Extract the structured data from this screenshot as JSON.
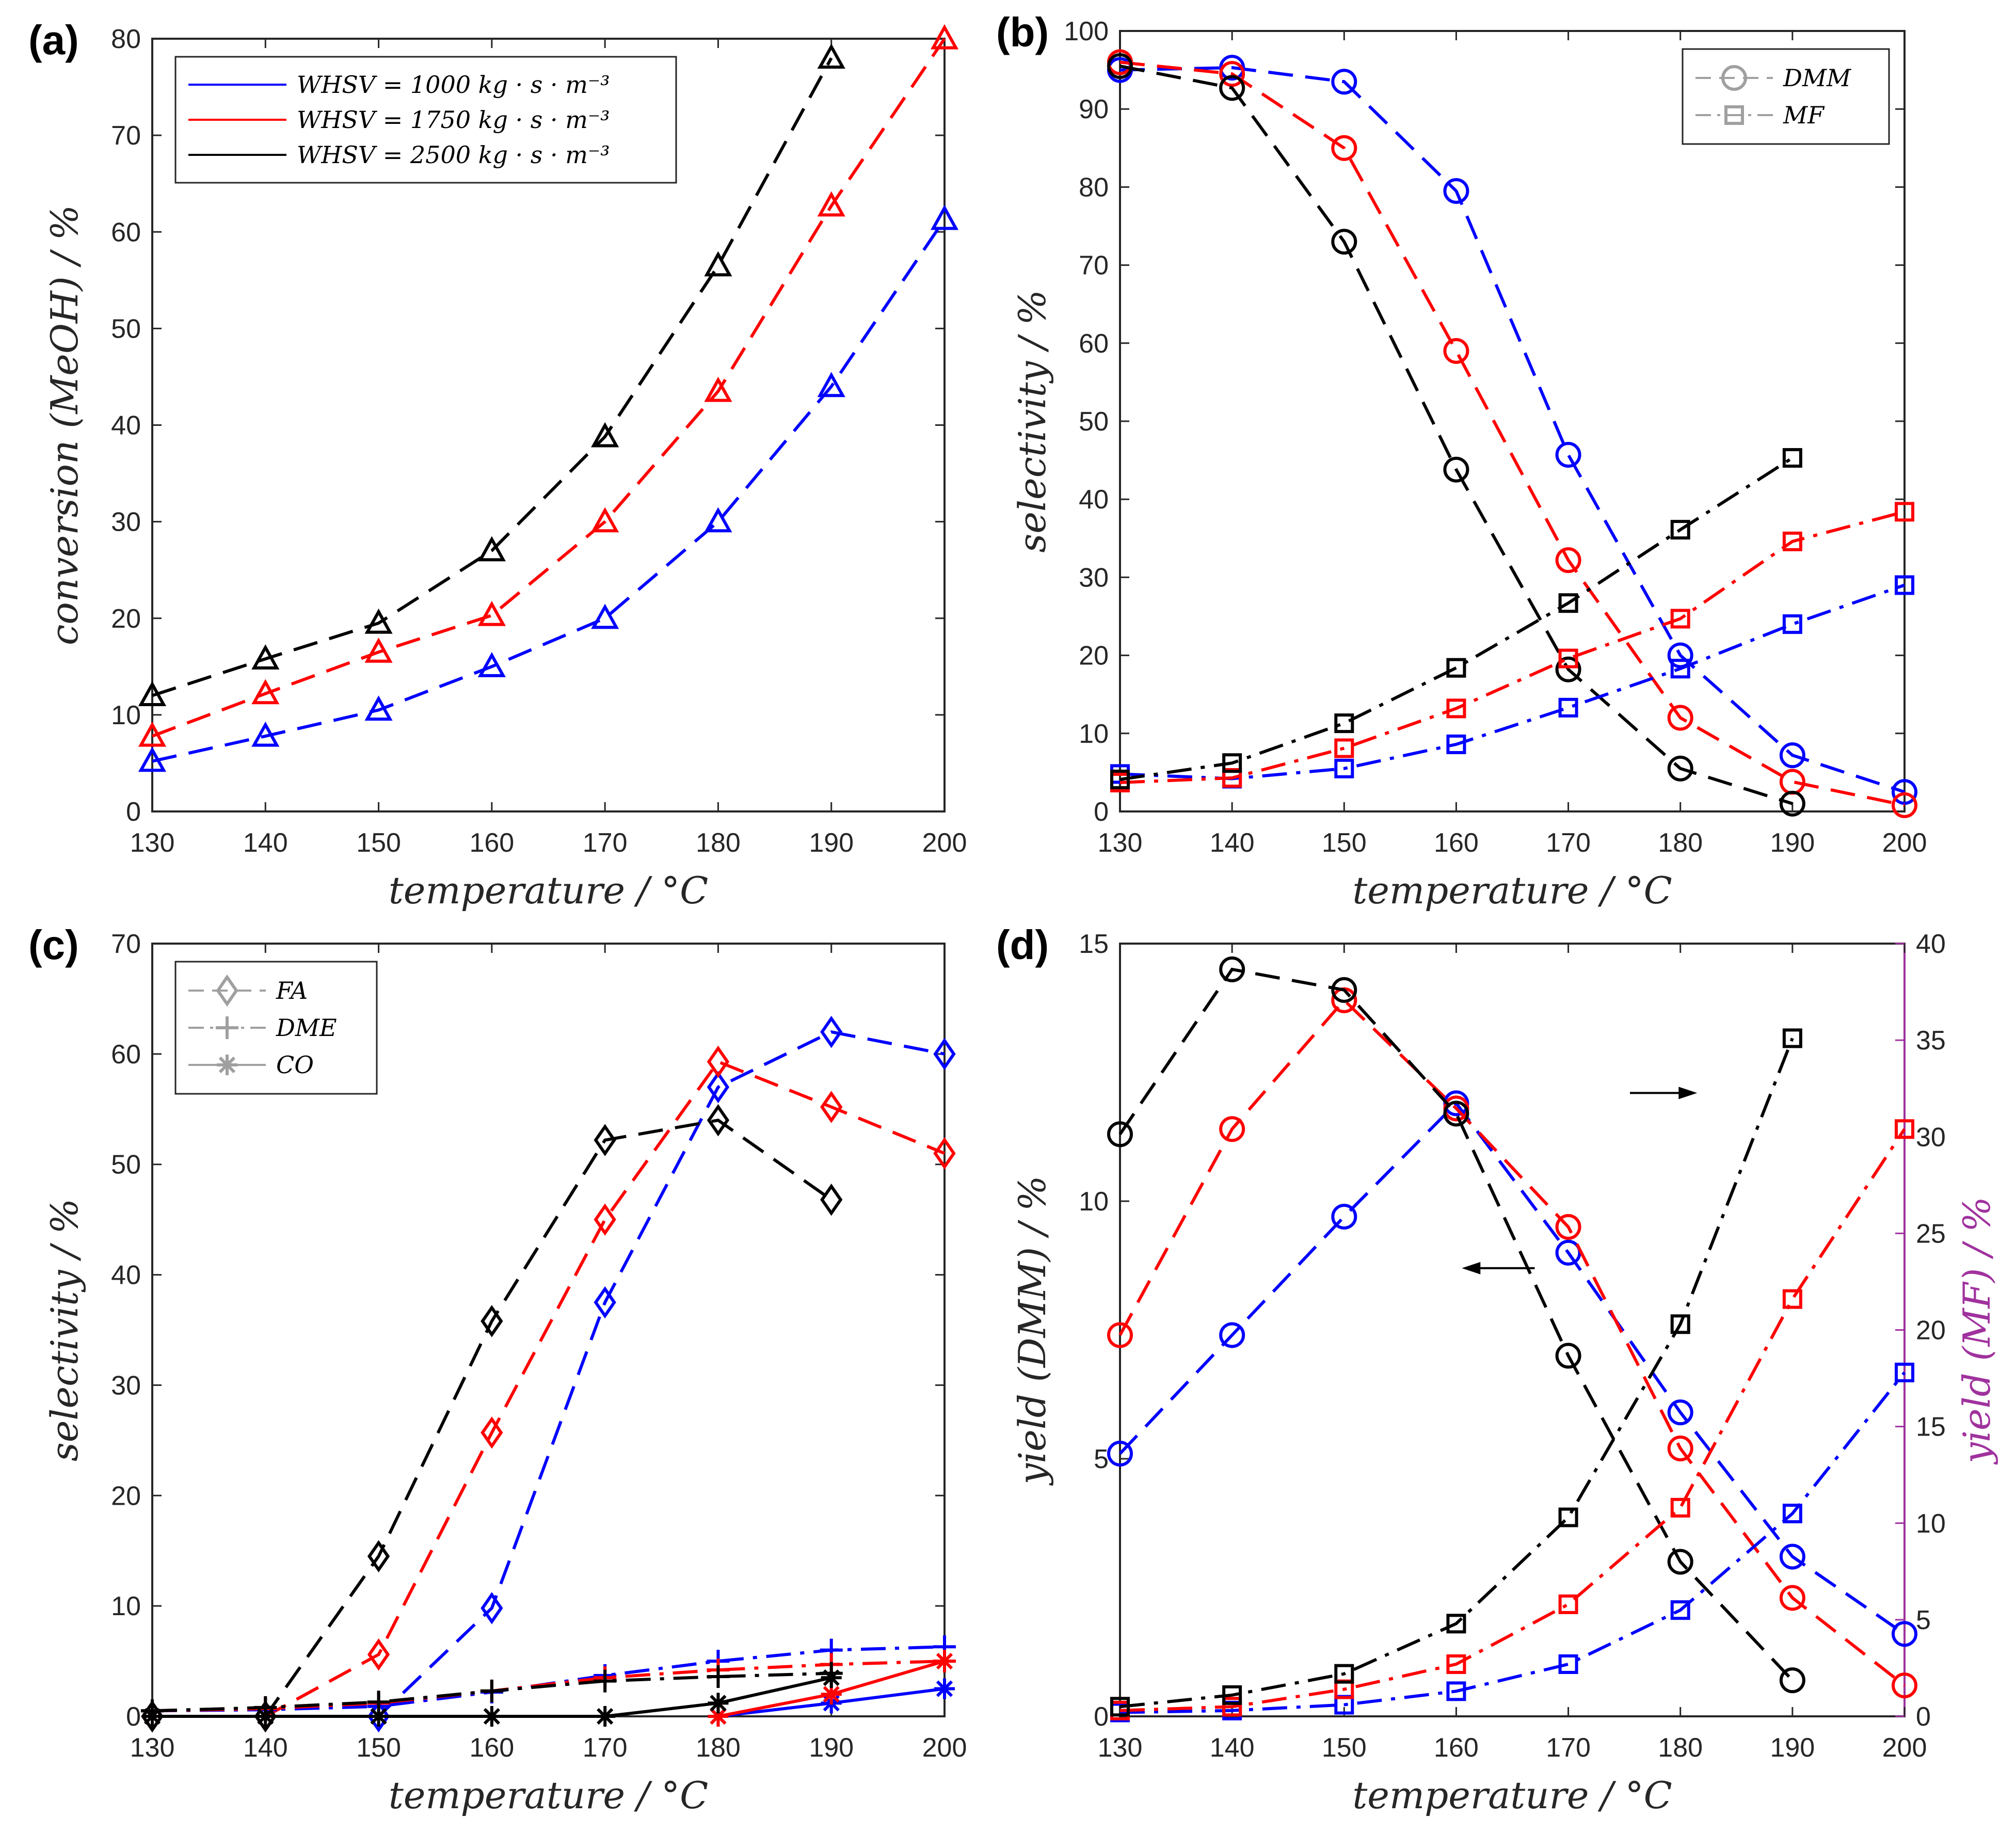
{
  "colors": {
    "blue": "#0000ff",
    "red": "#ff0000",
    "black": "#000000",
    "purple": "#a0329e",
    "gray": "#a0a0a0",
    "axis": "#262626"
  },
  "chart_data": [
    {
      "id": "a",
      "type": "line",
      "panel_label": "(a)",
      "xlabel": "temperature   /   °C",
      "ylabel": "conversion   (MeOH)   /   %",
      "xlim": [
        130,
        200
      ],
      "ylim": [
        0,
        80
      ],
      "xticks": [
        130,
        140,
        150,
        160,
        170,
        180,
        190,
        200
      ],
      "yticks": [
        0,
        10,
        20,
        30,
        40,
        50,
        60,
        70,
        80
      ],
      "legend": {
        "position": "top-left",
        "entries": [
          {
            "label": "WHSV = 1000   kg · s · m⁻³",
            "color": "blue",
            "dash": "solid",
            "marker": "none"
          },
          {
            "label": "WHSV = 1750   kg · s · m⁻³",
            "color": "red",
            "dash": "solid",
            "marker": "none"
          },
          {
            "label": "WHSV = 2500   kg · s · m⁻³",
            "color": "black",
            "dash": "solid",
            "marker": "none"
          }
        ]
      },
      "series": [
        {
          "name": "WHSV 1000",
          "color": "blue",
          "dash": "dashed",
          "marker": "triangle",
          "x": [
            130,
            140,
            150,
            160,
            170,
            180,
            190,
            200
          ],
          "values": [
            5.2,
            7.8,
            10.5,
            15.0,
            20.0,
            30.0,
            44.0,
            61.3
          ]
        },
        {
          "name": "WHSV 1750",
          "color": "red",
          "dash": "dashed",
          "marker": "triangle",
          "x": [
            130,
            140,
            150,
            160,
            170,
            180,
            190,
            200
          ],
          "values": [
            7.8,
            12.2,
            16.5,
            20.3,
            30.0,
            43.5,
            62.7,
            80.0
          ]
        },
        {
          "name": "WHSV 2500",
          "color": "black",
          "dash": "dashed",
          "marker": "triangle",
          "x": [
            130,
            140,
            150,
            160,
            170,
            180,
            190
          ],
          "values": [
            12.0,
            15.8,
            19.5,
            27.0,
            38.8,
            56.5,
            78.0
          ]
        }
      ]
    },
    {
      "id": "b",
      "type": "line",
      "panel_label": "(b)",
      "xlabel": "temperature   /   °C",
      "ylabel": "selectivity   /   %",
      "xlim": [
        130,
        200
      ],
      "ylim": [
        0,
        100
      ],
      "xticks": [
        130,
        140,
        150,
        160,
        170,
        180,
        190,
        200
      ],
      "yticks": [
        0,
        10,
        20,
        30,
        40,
        50,
        60,
        70,
        80,
        90,
        100
      ],
      "legend": {
        "position": "top-right",
        "entries": [
          {
            "label": "DMM",
            "color": "gray",
            "dash": "dashed",
            "marker": "circle"
          },
          {
            "label": "MF",
            "color": "gray",
            "dash": "dashdot",
            "marker": "square"
          }
        ]
      },
      "series": [
        {
          "name": "DMM 1000",
          "color": "blue",
          "dash": "dashed",
          "marker": "circle",
          "x": [
            130,
            140,
            150,
            160,
            170,
            180,
            190,
            200
          ],
          "values": [
            95.0,
            95.3,
            93.5,
            79.5,
            45.7,
            20.0,
            7.2,
            2.5
          ]
        },
        {
          "name": "DMM 1750",
          "color": "red",
          "dash": "dashed",
          "marker": "circle",
          "x": [
            130,
            140,
            150,
            160,
            170,
            180,
            190,
            200
          ],
          "values": [
            96.0,
            94.5,
            85.0,
            59.0,
            32.2,
            12.0,
            3.8,
            0.8
          ]
        },
        {
          "name": "DMM 2500",
          "color": "black",
          "dash": "dashed",
          "marker": "circle",
          "x": [
            130,
            140,
            150,
            160,
            170,
            180,
            190
          ],
          "values": [
            95.5,
            92.7,
            73.0,
            43.8,
            18.2,
            5.5,
            1.0
          ]
        },
        {
          "name": "MF 1000",
          "color": "blue",
          "dash": "dashdot",
          "marker": "square",
          "x": [
            130,
            140,
            150,
            160,
            170,
            180,
            190,
            200
          ],
          "values": [
            4.8,
            4.2,
            5.5,
            8.6,
            13.3,
            18.3,
            24.0,
            29.0
          ]
        },
        {
          "name": "MF 1750",
          "color": "red",
          "dash": "dashdot",
          "marker": "square",
          "x": [
            130,
            140,
            150,
            160,
            170,
            180,
            190,
            200
          ],
          "values": [
            3.7,
            4.3,
            8.1,
            13.2,
            19.6,
            24.7,
            34.6,
            38.4
          ]
        },
        {
          "name": "MF 2500",
          "color": "black",
          "dash": "dashdot",
          "marker": "square",
          "x": [
            130,
            140,
            150,
            160,
            170,
            180,
            190
          ],
          "values": [
            4.1,
            6.2,
            11.3,
            18.4,
            26.7,
            36.1,
            45.3
          ]
        }
      ]
    },
    {
      "id": "c",
      "type": "line",
      "panel_label": "(c)",
      "xlabel": "temperature   /   °C",
      "ylabel": "selectivity   /   %",
      "xlim": [
        130,
        200
      ],
      "ylim": [
        0,
        70
      ],
      "xticks": [
        130,
        140,
        150,
        160,
        170,
        180,
        190,
        200
      ],
      "yticks": [
        0,
        10,
        20,
        30,
        40,
        50,
        60,
        70
      ],
      "legend": {
        "position": "top-left",
        "entries": [
          {
            "label": "FA",
            "color": "gray",
            "dash": "dashed",
            "marker": "diamond"
          },
          {
            "label": "DME",
            "color": "gray",
            "dash": "dashdot",
            "marker": "plus"
          },
          {
            "label": "CO",
            "color": "gray",
            "dash": "solid",
            "marker": "asterisk"
          }
        ]
      },
      "series": [
        {
          "name": "FA 1000",
          "color": "blue",
          "dash": "dashed",
          "marker": "diamond",
          "x": [
            130,
            140,
            150,
            160,
            170,
            180,
            190,
            200
          ],
          "values": [
            0,
            0,
            0,
            9.8,
            37.5,
            57.0,
            62.0,
            60.0
          ]
        },
        {
          "name": "FA 1750",
          "color": "red",
          "dash": "dashed",
          "marker": "diamond",
          "x": [
            130,
            140,
            150,
            160,
            170,
            180,
            190,
            200
          ],
          "values": [
            0,
            0,
            5.6,
            25.7,
            45.0,
            59.3,
            55.2,
            51.0
          ]
        },
        {
          "name": "FA 2500",
          "color": "black",
          "dash": "dashed",
          "marker": "diamond",
          "x": [
            130,
            140,
            150,
            160,
            170,
            180,
            190
          ],
          "values": [
            0,
            0,
            14.5,
            35.8,
            52.2,
            54.0,
            46.8
          ]
        },
        {
          "name": "DME 1000",
          "color": "blue",
          "dash": "dashdot",
          "marker": "plus",
          "x": [
            130,
            140,
            150,
            160,
            170,
            180,
            190,
            200
          ],
          "values": [
            0.5,
            0.6,
            0.9,
            2.2,
            3.7,
            5.0,
            6.0,
            6.3
          ]
        },
        {
          "name": "DME 1750",
          "color": "red",
          "dash": "dashdot",
          "marker": "plus",
          "x": [
            130,
            140,
            150,
            160,
            170,
            180,
            190,
            200
          ],
          "values": [
            0.5,
            0.7,
            1.2,
            2.3,
            3.5,
            4.2,
            4.7,
            5.0
          ]
        },
        {
          "name": "DME 2500",
          "color": "black",
          "dash": "dashdot",
          "marker": "plus",
          "x": [
            130,
            140,
            150,
            160,
            170,
            180,
            190
          ],
          "values": [
            0.5,
            0.8,
            1.3,
            2.3,
            3.2,
            3.6,
            3.9
          ]
        },
        {
          "name": "CO 1000",
          "color": "blue",
          "dash": "solid",
          "marker": "asterisk",
          "x": [
            180,
            190,
            200
          ],
          "values": [
            0,
            1.2,
            2.5
          ]
        },
        {
          "name": "CO 1750",
          "color": "red",
          "dash": "solid",
          "marker": "asterisk",
          "x": [
            180,
            190,
            200
          ],
          "values": [
            0,
            2.0,
            5.0
          ]
        },
        {
          "name": "CO 2500",
          "color": "black",
          "dash": "solid",
          "marker": "asterisk",
          "x": [
            130,
            140,
            150,
            160,
            170,
            180,
            190
          ],
          "values": [
            0,
            0,
            0,
            0,
            0,
            1.2,
            3.5
          ]
        }
      ]
    },
    {
      "id": "d",
      "type": "line",
      "panel_label": "(d)",
      "xlabel": "temperature   /   °C",
      "ylabel": "yield   (DMM)   /   %",
      "ylabel_right": "yield   (MF)   /   %",
      "xlim": [
        130,
        200
      ],
      "ylim": [
        0,
        15
      ],
      "ylim_right": [
        0,
        40
      ],
      "xticks": [
        130,
        140,
        150,
        160,
        170,
        180,
        190,
        200
      ],
      "yticks": [
        0,
        5,
        10,
        15
      ],
      "yticks_right": [
        0,
        5,
        10,
        15,
        20,
        25,
        30,
        35,
        40
      ],
      "annotations": [
        "arrow-left near (165, 8.7) pointing to DMM axis",
        "arrow-right near (177, 12.1) pointing to MF axis"
      ],
      "series": [
        {
          "name": "DMM yield 1000",
          "color": "blue",
          "dash": "dashed",
          "marker": "circle",
          "axis": "left",
          "x": [
            130,
            140,
            150,
            160,
            170,
            180,
            190,
            200
          ],
          "values": [
            5.1,
            7.4,
            9.7,
            11.9,
            9.0,
            5.9,
            3.1,
            1.6
          ]
        },
        {
          "name": "DMM yield 1750",
          "color": "red",
          "dash": "dashed",
          "marker": "circle",
          "axis": "left",
          "x": [
            130,
            140,
            150,
            160,
            170,
            180,
            190,
            200
          ],
          "values": [
            7.4,
            11.4,
            13.9,
            11.8,
            9.5,
            5.2,
            2.3,
            0.6
          ]
        },
        {
          "name": "DMM yield 2500",
          "color": "black",
          "dash": "dashed",
          "marker": "circle",
          "axis": "left",
          "x": [
            130,
            140,
            150,
            160,
            170,
            180,
            190
          ],
          "values": [
            11.3,
            14.5,
            14.1,
            11.7,
            7.0,
            3.0,
            0.7
          ]
        },
        {
          "name": "MF yield 1000",
          "color": "blue",
          "dash": "dashdot",
          "marker": "square",
          "axis": "right",
          "x": [
            130,
            140,
            150,
            160,
            170,
            180,
            190,
            200
          ],
          "values": [
            0.2,
            0.3,
            0.6,
            1.3,
            2.7,
            5.5,
            10.5,
            17.8
          ]
        },
        {
          "name": "MF yield 1750",
          "color": "red",
          "dash": "dashdot",
          "marker": "square",
          "axis": "right",
          "x": [
            130,
            140,
            150,
            160,
            170,
            180,
            190,
            200
          ],
          "values": [
            0.3,
            0.5,
            1.4,
            2.7,
            5.8,
            10.8,
            21.6,
            30.4
          ]
        },
        {
          "name": "MF yield 2500",
          "color": "black",
          "dash": "dashdot",
          "marker": "square",
          "axis": "right",
          "x": [
            130,
            140,
            150,
            160,
            170,
            180,
            190
          ],
          "values": [
            0.5,
            1.1,
            2.2,
            4.8,
            10.3,
            20.3,
            35.1
          ]
        }
      ]
    }
  ]
}
